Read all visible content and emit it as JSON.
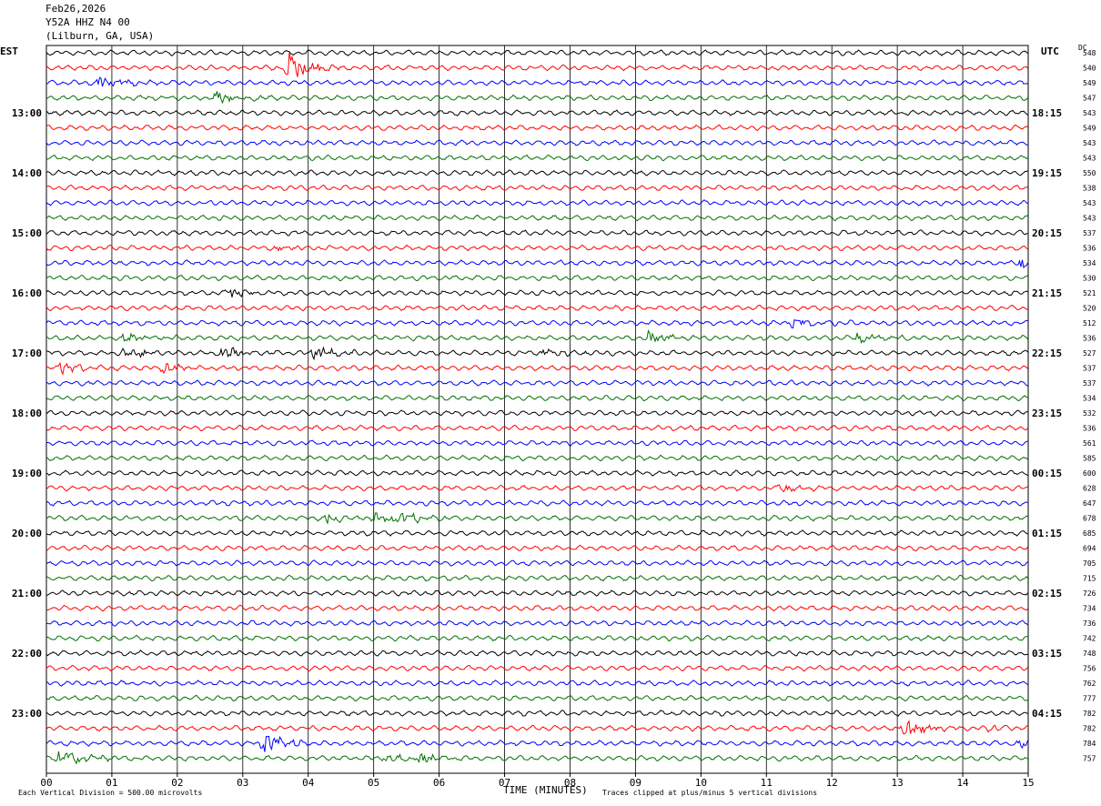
{
  "header": {
    "date": "Feb26,2026",
    "station": "Y52A HHZ N4 00",
    "location": "(Lilburn, GA, USA)"
  },
  "left_timezone": "EST",
  "right_timezone": "UTC",
  "dc_label": "DC",
  "footer": {
    "scale_note": "Each Vertical Division =  500.00 microvolts",
    "clip_note": "Traces clipped at plus/minus 5 vertical divisions"
  },
  "colors": {
    "trace_cycle": [
      "#000000",
      "#ff0000",
      "#0000ff",
      "#007000"
    ],
    "grid": "#000000"
  },
  "chart_data": {
    "type": "line",
    "title": "Feb26,2026  Y52A HHZ N4 00  (Lilburn, GA, USA)",
    "xlabel": "TIME (MINUTES)",
    "ylabel": "",
    "xlim": [
      0,
      15
    ],
    "x_ticks": [
      "00",
      "01",
      "02",
      "03",
      "04",
      "05",
      "06",
      "07",
      "08",
      "09",
      "10",
      "11",
      "12",
      "13",
      "14",
      "15"
    ],
    "trace_count": 48,
    "left_hour_labels": [
      {
        "trace": 4,
        "label": "13:00"
      },
      {
        "trace": 8,
        "label": "14:00"
      },
      {
        "trace": 12,
        "label": "15:00"
      },
      {
        "trace": 16,
        "label": "16:00"
      },
      {
        "trace": 20,
        "label": "17:00"
      },
      {
        "trace": 24,
        "label": "18:00"
      },
      {
        "trace": 28,
        "label": "19:00"
      },
      {
        "trace": 32,
        "label": "20:00"
      },
      {
        "trace": 36,
        "label": "21:00"
      },
      {
        "trace": 40,
        "label": "22:00"
      },
      {
        "trace": 44,
        "label": "23:00"
      }
    ],
    "right_hour_labels": [
      {
        "trace": 4,
        "label": "18:15"
      },
      {
        "trace": 8,
        "label": "19:15"
      },
      {
        "trace": 12,
        "label": "20:15"
      },
      {
        "trace": 16,
        "label": "21:15"
      },
      {
        "trace": 20,
        "label": "22:15"
      },
      {
        "trace": 24,
        "label": "23:15"
      },
      {
        "trace": 28,
        "label": "00:15"
      },
      {
        "trace": 32,
        "label": "01:15"
      },
      {
        "trace": 36,
        "label": "02:15"
      },
      {
        "trace": 40,
        "label": "03:15"
      },
      {
        "trace": 44,
        "label": "04:15"
      }
    ],
    "dc_offsets": [
      "548",
      "540",
      "549",
      "547",
      "543",
      "549",
      "543",
      "543",
      "550",
      "538",
      "543",
      "543",
      "537",
      "536",
      "534",
      "530",
      "521",
      "520",
      "512",
      "536",
      "527",
      "537",
      "537",
      "534",
      "532",
      "536",
      "561",
      "585",
      "600",
      "628",
      "647",
      "678",
      "685",
      "694",
      "705",
      "715",
      "726",
      "734",
      "736",
      "742",
      "748",
      "756",
      "762",
      "777",
      "782",
      "782",
      "784",
      "757"
    ],
    "events": [
      {
        "trace": 1,
        "minute": 3.7,
        "amp": 3.2
      },
      {
        "trace": 2,
        "minute": 0.8,
        "amp": 1.2
      },
      {
        "trace": 3,
        "minute": 2.6,
        "amp": 1.3
      },
      {
        "trace": 13,
        "minute": 3.5,
        "amp": 0.7
      },
      {
        "trace": 14,
        "minute": 14.9,
        "amp": 1.2
      },
      {
        "trace": 16,
        "minute": 2.8,
        "amp": 0.9
      },
      {
        "trace": 18,
        "minute": 11.4,
        "amp": 1.0
      },
      {
        "trace": 19,
        "minute": 1.2,
        "amp": 1.0
      },
      {
        "trace": 19,
        "minute": 9.2,
        "amp": 1.2
      },
      {
        "trace": 19,
        "minute": 12.4,
        "amp": 1.0
      },
      {
        "trace": 20,
        "minute": 1.2,
        "amp": 1.0
      },
      {
        "trace": 20,
        "minute": 2.7,
        "amp": 1.2
      },
      {
        "trace": 20,
        "minute": 4.1,
        "amp": 1.2
      },
      {
        "trace": 20,
        "minute": 7.6,
        "amp": 0.9
      },
      {
        "trace": 21,
        "minute": 0.2,
        "amp": 1.3
      },
      {
        "trace": 21,
        "minute": 1.8,
        "amp": 0.9
      },
      {
        "trace": 29,
        "minute": 11.2,
        "amp": 0.8
      },
      {
        "trace": 31,
        "minute": 4.3,
        "amp": 1.2
      },
      {
        "trace": 31,
        "minute": 5.0,
        "amp": 1.0
      },
      {
        "trace": 31,
        "minute": 5.4,
        "amp": 1.3
      },
      {
        "trace": 45,
        "minute": 13.1,
        "amp": 1.8
      },
      {
        "trace": 45,
        "minute": 14.4,
        "amp": 0.6
      },
      {
        "trace": 46,
        "minute": 3.3,
        "amp": 2.2
      },
      {
        "trace": 46,
        "minute": 14.9,
        "amp": 1.0
      },
      {
        "trace": 47,
        "minute": 0.2,
        "amp": 2.2
      },
      {
        "trace": 47,
        "minute": 5.2,
        "amp": 0.7
      },
      {
        "trace": 47,
        "minute": 5.7,
        "amp": 0.9
      }
    ],
    "grid": true
  }
}
